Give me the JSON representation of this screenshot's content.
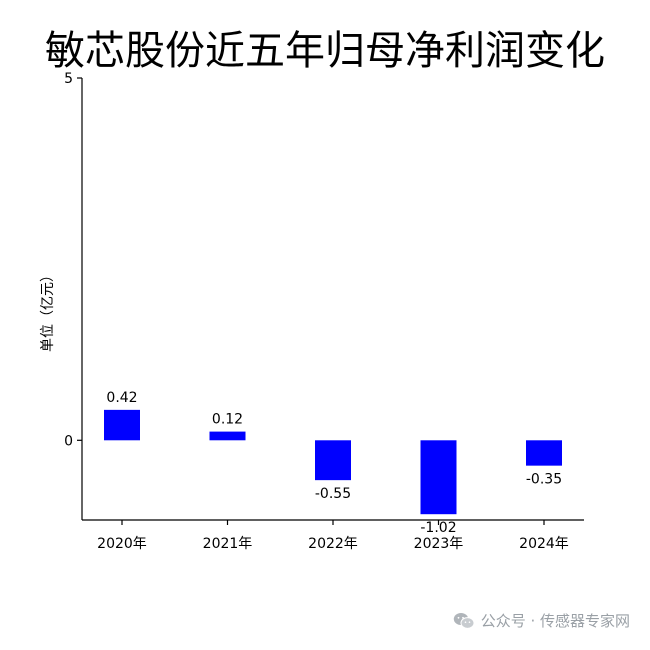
{
  "chart_data": {
    "type": "bar",
    "title": "敏芯股份近五年归母净利润变化",
    "ylabel": "单位（亿元）",
    "xlabel": "",
    "categories": [
      "2020年",
      "2021年",
      "2022年",
      "2023年",
      "2024年"
    ],
    "values": [
      0.42,
      0.12,
      -0.55,
      -1.02,
      -0.35
    ],
    "value_labels": [
      "0.42",
      "0.12",
      "-0.55",
      "-1.02",
      "-0.35"
    ],
    "ylim": [
      -1.1,
      5
    ],
    "yticks": [
      0,
      5
    ],
    "ytick_labels": [
      "0",
      "5"
    ],
    "grid": false,
    "bar_color": "#0000ff"
  },
  "watermark": {
    "text": "公众号 · 传感器专家网",
    "icon": "wechat-icon",
    "color": "#9aa0a6"
  }
}
